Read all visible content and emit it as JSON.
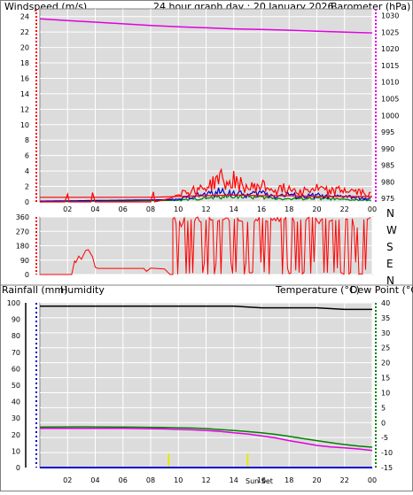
{
  "header": {
    "wind_label": "Windspeed (m/s)",
    "title": "24 hour graph day : 20 January 2026",
    "baro_label": "Barometer (hPa)"
  },
  "compass": [
    "N",
    "W",
    "S",
    "E",
    "N"
  ],
  "bottom": {
    "rain_label": "Rainfall (mm)",
    "humidity_label": "Humidity",
    "temp_label": "Temperature (°C)",
    "dew_label": "Dew Point (°C)",
    "marker_label": "Sun Set"
  },
  "colors": {
    "wind": "#ff0000",
    "baro": "#e000e0",
    "rain": "#0000cc",
    "humidity": "#000000",
    "temp": "#008000",
    "dew": "#e000e0",
    "marker": "#e8e800",
    "panel_bg": "#dcdcdc",
    "grid": "#ffffff",
    "border": "#808080"
  },
  "chart_data": [
    {
      "type": "line",
      "name": "wind-barometer",
      "x_ticks": [
        "02",
        "04",
        "06",
        "08",
        "10",
        "12",
        "14",
        "16",
        "18",
        "20",
        "22",
        "00"
      ],
      "xlim": [
        0,
        24
      ],
      "y_left_ticks": [
        0,
        2,
        4,
        6,
        8,
        10,
        12,
        14,
        16,
        18,
        20,
        22,
        24
      ],
      "ylim_left": [
        0,
        25
      ],
      "y_right_ticks": [
        975,
        980,
        985,
        990,
        995,
        1000,
        1005,
        1010,
        1015,
        1020,
        1025,
        1030
      ],
      "ylim_right": [
        974,
        1032
      ],
      "series": [
        {
          "role": "barometer",
          "axis": "right",
          "x": [
            0,
            2,
            4,
            6,
            8,
            10,
            12,
            14,
            16,
            18,
            20,
            22,
            24
          ],
          "values": [
            1029.0,
            1028.5,
            1028.0,
            1027.5,
            1027.0,
            1026.6,
            1026.3,
            1026.0,
            1025.8,
            1025.6,
            1025.3,
            1025.0,
            1024.8
          ]
        },
        {
          "role": "wind-avg",
          "axis": "left",
          "x": [
            0,
            2,
            4,
            6,
            8,
            10,
            12,
            14,
            16,
            18,
            20,
            22,
            24
          ],
          "values": [
            0.6,
            0.6,
            0.6,
            0.6,
            0.6,
            0.7,
            0.8,
            0.9,
            0.8,
            0.8,
            0.7,
            0.7,
            0.7
          ]
        },
        {
          "role": "wind-gust",
          "axis": "left",
          "x": [
            0,
            1.8,
            2.0,
            2.1,
            3.7,
            3.8,
            4.0,
            8.0,
            8.2,
            8.3,
            9.5,
            10,
            11,
            11.5,
            12,
            12.5,
            13,
            13.5,
            14,
            14.5,
            15,
            16,
            17,
            18,
            19,
            20,
            21,
            22,
            23,
            24
          ],
          "values": [
            0,
            0,
            1.0,
            0,
            0,
            1.2,
            0,
            0,
            1.3,
            0,
            0.5,
            1.3,
            1.5,
            1.8,
            2.0,
            2.5,
            3.5,
            2.2,
            3.0,
            2.4,
            1.8,
            2.2,
            1.6,
            1.9,
            1.5,
            1.8,
            1.4,
            1.6,
            1.3,
            1.1
          ]
        },
        {
          "role": "wind-2",
          "axis": "left",
          "x": [
            0,
            10,
            11,
            12,
            13,
            14,
            15,
            16,
            17,
            18,
            19,
            20,
            21,
            22,
            23,
            24
          ],
          "values": [
            0.1,
            0.3,
            0.8,
            1.0,
            1.4,
            1.2,
            0.9,
            1.3,
            0.8,
            1.0,
            0.7,
            0.9,
            0.6,
            0.8,
            0.5,
            0.4
          ]
        },
        {
          "role": "wind-3",
          "axis": "left",
          "x": [
            0,
            10,
            12,
            14,
            16,
            18,
            20,
            22,
            24
          ],
          "values": [
            0.0,
            0.2,
            0.5,
            0.8,
            0.6,
            0.4,
            0.5,
            0.3,
            0.2
          ]
        }
      ]
    },
    {
      "type": "line",
      "name": "wind-direction",
      "yticks": [
        0,
        90,
        180,
        270,
        360
      ],
      "ylim": [
        0,
        360
      ],
      "xlim": [
        0,
        24
      ],
      "series": [
        {
          "role": "direction",
          "x": [
            0,
            2.3,
            2.5,
            2.6,
            2.8,
            3.0,
            3.3,
            3.5,
            3.8,
            4.0,
            4.2,
            5.0,
            6.0,
            7.0,
            7.5,
            7.7,
            8.0,
            9.0,
            9.4,
            9.6
          ],
          "values": [
            0,
            0,
            85,
            75,
            115,
            95,
            150,
            155,
            110,
            45,
            38,
            38,
            38,
            38,
            38,
            20,
            40,
            35,
            0,
            0
          ]
        }
      ],
      "variable_from": 9.6
    },
    {
      "type": "line",
      "name": "temperature-humidity",
      "x_ticks": [
        "02",
        "04",
        "06",
        "08",
        "10",
        "12",
        "14",
        "16",
        "18",
        "20",
        "22",
        "00"
      ],
      "xlim": [
        0,
        24
      ],
      "y_left_ticks": [
        0,
        10,
        20,
        30,
        40,
        50,
        60,
        70,
        80,
        90,
        100
      ],
      "ylim_left": [
        0,
        100
      ],
      "y_right_ticks": [
        -15,
        -10,
        -5,
        0,
        5,
        10,
        15,
        20,
        25,
        30,
        35,
        40
      ],
      "ylim_right": [
        -15,
        40
      ],
      "series": [
        {
          "role": "humidity",
          "axis": "left",
          "x": [
            0,
            5,
            10,
            12,
            13,
            14,
            16,
            18,
            20,
            22,
            24
          ],
          "values": [
            98,
            98,
            98,
            98,
            98,
            98,
            97,
            97,
            97,
            96,
            96
          ]
        },
        {
          "role": "temperature",
          "axis": "right",
          "x": [
            0,
            3,
            6,
            9,
            11,
            12,
            13,
            14,
            15,
            16,
            17,
            18,
            19,
            20,
            21,
            22,
            23,
            24
          ],
          "values": [
            -1.5,
            -1.4,
            -1.5,
            -1.6,
            -1.8,
            -2.0,
            -2.3,
            -2.6,
            -3.0,
            -3.4,
            -3.9,
            -4.6,
            -5.3,
            -6.0,
            -6.7,
            -7.3,
            -7.8,
            -8.2
          ]
        },
        {
          "role": "dewpoint",
          "axis": "right",
          "x": [
            0,
            3,
            6,
            9,
            11,
            12,
            13,
            14,
            15,
            16,
            17,
            18,
            19,
            20,
            21,
            22,
            23,
            24
          ],
          "values": [
            -1.9,
            -1.9,
            -1.9,
            -2.1,
            -2.4,
            -2.6,
            -2.9,
            -3.4,
            -3.8,
            -4.4,
            -5.1,
            -6.0,
            -6.8,
            -7.6,
            -8.1,
            -8.4,
            -8.8,
            -9.3
          ]
        },
        {
          "role": "rainfall",
          "axis": "left",
          "x": [
            0,
            24
          ],
          "values": [
            0,
            0
          ]
        }
      ],
      "markers": [
        9.3,
        15.0
      ]
    }
  ]
}
